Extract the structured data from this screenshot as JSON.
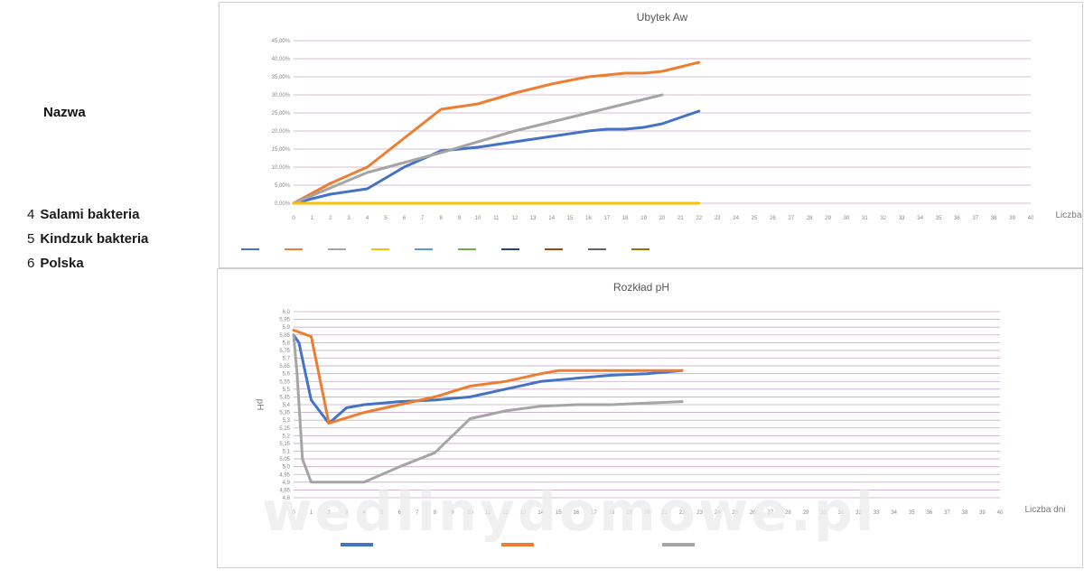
{
  "sidebar": {
    "heading": "Nazwa",
    "items": [
      {
        "number": "4",
        "label": "Salami bakteria"
      },
      {
        "number": "5",
        "label": "Kindzuk bakteria"
      },
      {
        "number": "6",
        "label": "Polska"
      }
    ]
  },
  "watermark": "wedlinydomowe.pl",
  "chart_data": [
    {
      "type": "line",
      "title": "Ubytek Aw",
      "xlabel": "Liczba dni",
      "ylabel": "",
      "x": [
        0,
        1,
        2,
        3,
        4,
        5,
        6,
        7,
        8,
        9,
        10,
        11,
        12,
        13,
        14,
        15,
        16,
        17,
        18,
        19,
        20,
        21,
        22,
        23,
        24,
        25,
        26,
        27,
        28,
        29,
        30,
        31,
        32,
        33,
        34,
        35,
        36,
        37,
        38,
        39,
        40
      ],
      "ylim": [
        0,
        0.45
      ],
      "yticks": [
        "0,00%",
        "5,00%",
        "10,00%",
        "15,00%",
        "20,00%",
        "25,00%",
        "30,00%",
        "35,00%",
        "40,00%",
        "45,00%"
      ],
      "grid": true,
      "legend": "bottom",
      "series": [
        {
          "name": "",
          "color": "#4472c4",
          "x": [
            0,
            2,
            4,
            6,
            8,
            10,
            12,
            14,
            16,
            17,
            18,
            19,
            20,
            22
          ],
          "values": [
            0,
            0.025,
            0.04,
            0.1,
            0.145,
            0.155,
            0.17,
            0.185,
            0.2,
            0.205,
            0.205,
            0.21,
            0.22,
            0.255
          ]
        },
        {
          "name": "",
          "color": "#ed7d31",
          "x": [
            0,
            2,
            4,
            6,
            8,
            10,
            12,
            14,
            16,
            17,
            18,
            19,
            20,
            22
          ],
          "values": [
            0,
            0.055,
            0.1,
            0.18,
            0.26,
            0.275,
            0.305,
            0.33,
            0.35,
            0.355,
            0.36,
            0.36,
            0.365,
            0.39
          ]
        },
        {
          "name": "",
          "color": "#a5a5a5",
          "x": [
            0,
            4,
            8,
            12,
            16,
            20
          ],
          "values": [
            0,
            0.085,
            0.14,
            0.2,
            0.25,
            0.3
          ]
        },
        {
          "name": "",
          "color": "#ffc000",
          "x": [
            0,
            22
          ],
          "values": [
            0,
            0
          ]
        }
      ],
      "extra_legend_colors": [
        "#5b9bd5",
        "#70ad47",
        "#264478",
        "#9e480e",
        "#636363",
        "#997300"
      ]
    },
    {
      "type": "line",
      "title": "Rozkład pH",
      "xlabel": "Liczba dni",
      "ylabel": "pH",
      "x": [
        0,
        1,
        2,
        3,
        4,
        5,
        6,
        7,
        8,
        9,
        10,
        11,
        12,
        13,
        14,
        15,
        16,
        17,
        18,
        19,
        20,
        21,
        22,
        23,
        24,
        25,
        26,
        27,
        28,
        29,
        30,
        31,
        32,
        33,
        34,
        35,
        36,
        37,
        38,
        39,
        40
      ],
      "ylim": [
        4.8,
        6.0
      ],
      "grid": true,
      "legend": "bottom",
      "series": [
        {
          "name": "",
          "color": "#4472c4",
          "x": [
            0,
            0.3,
            1,
            2,
            3,
            4,
            6,
            8,
            10,
            12,
            14,
            16,
            18,
            20,
            22
          ],
          "values": [
            5.85,
            5.8,
            5.43,
            5.28,
            5.38,
            5.4,
            5.42,
            5.43,
            5.45,
            5.5,
            5.55,
            5.57,
            5.59,
            5.6,
            5.62
          ]
        },
        {
          "name": "",
          "color": "#ed7d31",
          "x": [
            0,
            1,
            2,
            4,
            6,
            8,
            10,
            12,
            14,
            15,
            16,
            18,
            20,
            22
          ],
          "values": [
            5.88,
            5.84,
            5.28,
            5.35,
            5.4,
            5.45,
            5.52,
            5.55,
            5.6,
            5.62,
            5.62,
            5.62,
            5.62,
            5.62
          ]
        },
        {
          "name": "",
          "color": "#a5a5a5",
          "x": [
            0,
            0.2,
            0.5,
            1,
            2,
            3,
            4,
            6,
            8,
            10,
            12,
            14,
            16,
            18,
            20,
            22
          ],
          "values": [
            5.85,
            5.6,
            5.05,
            4.9,
            4.9,
            4.9,
            4.9,
            5.0,
            5.09,
            5.31,
            5.36,
            5.39,
            5.4,
            5.4,
            5.41,
            5.42
          ]
        }
      ]
    }
  ]
}
